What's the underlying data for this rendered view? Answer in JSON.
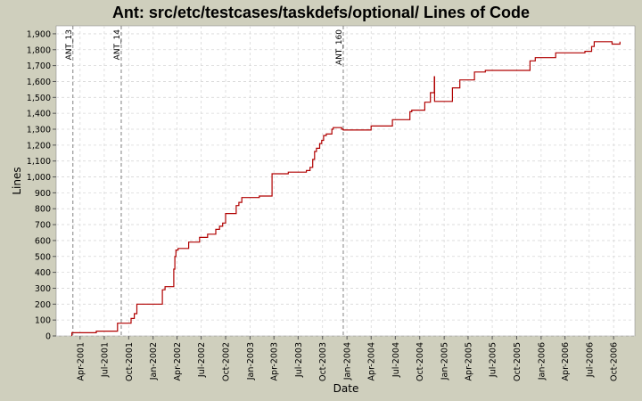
{
  "chart_data": {
    "type": "line",
    "title": "Ant: src/etc/testcases/taskdefs/optional/ Lines of Code",
    "xlabel": "Date",
    "ylabel": "Lines",
    "ylim": [
      0,
      1950
    ],
    "xlim": [
      "2001-01-01",
      "2006-12-20"
    ],
    "grid": true,
    "yticks": [
      0,
      100,
      200,
      300,
      400,
      500,
      600,
      700,
      800,
      900,
      1000,
      1100,
      1200,
      1300,
      1400,
      1500,
      1600,
      1700,
      1800,
      1900
    ],
    "xticks": [
      {
        "date": "2001-04-01",
        "label": "Apr-2001"
      },
      {
        "date": "2001-07-01",
        "label": "Jul-2001"
      },
      {
        "date": "2001-10-01",
        "label": "Oct-2001"
      },
      {
        "date": "2002-01-01",
        "label": "Jan-2002"
      },
      {
        "date": "2002-04-01",
        "label": "Apr-2002"
      },
      {
        "date": "2002-07-01",
        "label": "Jul-2002"
      },
      {
        "date": "2002-10-01",
        "label": "Oct-2002"
      },
      {
        "date": "2003-01-01",
        "label": "Jan-2003"
      },
      {
        "date": "2003-04-01",
        "label": "Apr-2003"
      },
      {
        "date": "2003-07-01",
        "label": "Jul-2003"
      },
      {
        "date": "2003-10-01",
        "label": "Oct-2003"
      },
      {
        "date": "2004-01-01",
        "label": "Jan-2004"
      },
      {
        "date": "2004-04-01",
        "label": "Apr-2004"
      },
      {
        "date": "2004-07-01",
        "label": "Jul-2004"
      },
      {
        "date": "2004-10-01",
        "label": "Oct-2004"
      },
      {
        "date": "2005-01-01",
        "label": "Jan-2005"
      },
      {
        "date": "2005-04-01",
        "label": "Apr-2005"
      },
      {
        "date": "2005-07-01",
        "label": "Jul-2005"
      },
      {
        "date": "2005-10-01",
        "label": "Oct-2005"
      },
      {
        "date": "2006-01-01",
        "label": "Jan-2006"
      },
      {
        "date": "2006-04-01",
        "label": "Apr-2006"
      },
      {
        "date": "2006-07-01",
        "label": "Jul-2006"
      },
      {
        "date": "2006-10-01",
        "label": "Oct-2006"
      }
    ],
    "markers": [
      {
        "date": "2001-03-05",
        "label": "ANT_13"
      },
      {
        "date": "2001-09-03",
        "label": "ANT_14"
      },
      {
        "date": "2003-12-18",
        "label": "ANT_160"
      }
    ],
    "series": [
      {
        "color": "#b00000",
        "points": [
          [
            "2001-03-01",
            0
          ],
          [
            "2001-03-01",
            20
          ],
          [
            "2001-06-01",
            20
          ],
          [
            "2001-06-01",
            30
          ],
          [
            "2001-08-20",
            30
          ],
          [
            "2001-08-20",
            80
          ],
          [
            "2001-10-10",
            80
          ],
          [
            "2001-10-10",
            110
          ],
          [
            "2001-10-22",
            110
          ],
          [
            "2001-10-22",
            140
          ],
          [
            "2001-11-01",
            140
          ],
          [
            "2001-11-01",
            200
          ],
          [
            "2002-02-05",
            200
          ],
          [
            "2002-02-05",
            290
          ],
          [
            "2002-02-15",
            290
          ],
          [
            "2002-02-15",
            310
          ],
          [
            "2002-03-20",
            310
          ],
          [
            "2002-03-20",
            420
          ],
          [
            "2002-03-24",
            420
          ],
          [
            "2002-03-24",
            500
          ],
          [
            "2002-03-28",
            500
          ],
          [
            "2002-03-28",
            540
          ],
          [
            "2002-04-05",
            540
          ],
          [
            "2002-04-05",
            550
          ],
          [
            "2002-05-15",
            550
          ],
          [
            "2002-05-15",
            590
          ],
          [
            "2002-06-25",
            590
          ],
          [
            "2002-06-25",
            620
          ],
          [
            "2002-07-25",
            620
          ],
          [
            "2002-07-25",
            640
          ],
          [
            "2002-08-25",
            640
          ],
          [
            "2002-08-25",
            670
          ],
          [
            "2002-09-08",
            670
          ],
          [
            "2002-09-08",
            690
          ],
          [
            "2002-09-20",
            690
          ],
          [
            "2002-09-20",
            710
          ],
          [
            "2002-10-01",
            710
          ],
          [
            "2002-10-01",
            770
          ],
          [
            "2002-11-10",
            770
          ],
          [
            "2002-11-10",
            820
          ],
          [
            "2002-11-20",
            820
          ],
          [
            "2002-11-20",
            840
          ],
          [
            "2002-12-01",
            840
          ],
          [
            "2002-12-01",
            870
          ],
          [
            "2003-02-05",
            870
          ],
          [
            "2003-02-05",
            880
          ],
          [
            "2003-03-25",
            880
          ],
          [
            "2003-03-25",
            1020
          ],
          [
            "2003-05-25",
            1020
          ],
          [
            "2003-05-25",
            1030
          ],
          [
            "2003-08-01",
            1030
          ],
          [
            "2003-08-01",
            1040
          ],
          [
            "2003-08-15",
            1040
          ],
          [
            "2003-08-15",
            1060
          ],
          [
            "2003-08-25",
            1060
          ],
          [
            "2003-08-25",
            1110
          ],
          [
            "2003-09-01",
            1110
          ],
          [
            "2003-09-01",
            1160
          ],
          [
            "2003-09-08",
            1160
          ],
          [
            "2003-09-08",
            1180
          ],
          [
            "2003-09-20",
            1180
          ],
          [
            "2003-09-20",
            1210
          ],
          [
            "2003-09-28",
            1210
          ],
          [
            "2003-09-28",
            1230
          ],
          [
            "2003-10-05",
            1230
          ],
          [
            "2003-10-05",
            1260
          ],
          [
            "2003-10-15",
            1260
          ],
          [
            "2003-10-15",
            1270
          ],
          [
            "2003-11-05",
            1270
          ],
          [
            "2003-11-05",
            1300
          ],
          [
            "2003-11-10",
            1300
          ],
          [
            "2003-11-10",
            1310
          ],
          [
            "2003-12-12",
            1310
          ],
          [
            "2003-12-12",
            1300
          ],
          [
            "2003-12-18",
            1300
          ],
          [
            "2003-12-18",
            1295
          ],
          [
            "2004-04-01",
            1295
          ],
          [
            "2004-04-01",
            1320
          ],
          [
            "2004-06-20",
            1320
          ],
          [
            "2004-06-20",
            1360
          ],
          [
            "2004-08-25",
            1360
          ],
          [
            "2004-08-25",
            1410
          ],
          [
            "2004-09-01",
            1410
          ],
          [
            "2004-09-01",
            1420
          ],
          [
            "2004-10-20",
            1420
          ],
          [
            "2004-10-20",
            1470
          ],
          [
            "2004-11-10",
            1470
          ],
          [
            "2004-11-10",
            1530
          ],
          [
            "2004-11-25",
            1530
          ],
          [
            "2004-11-25",
            1630
          ],
          [
            "2004-11-26",
            1630
          ],
          [
            "2004-11-26",
            1475
          ],
          [
            "2005-02-01",
            1475
          ],
          [
            "2005-02-01",
            1560
          ],
          [
            "2005-03-01",
            1560
          ],
          [
            "2005-03-01",
            1610
          ],
          [
            "2005-04-25",
            1610
          ],
          [
            "2005-04-25",
            1660
          ],
          [
            "2005-06-05",
            1660
          ],
          [
            "2005-06-05",
            1670
          ],
          [
            "2005-11-20",
            1670
          ],
          [
            "2005-11-20",
            1730
          ],
          [
            "2005-12-10",
            1730
          ],
          [
            "2005-12-10",
            1750
          ],
          [
            "2006-02-25",
            1750
          ],
          [
            "2006-02-25",
            1780
          ],
          [
            "2006-06-15",
            1780
          ],
          [
            "2006-06-15",
            1790
          ],
          [
            "2006-07-10",
            1790
          ],
          [
            "2006-07-10",
            1820
          ],
          [
            "2006-07-20",
            1820
          ],
          [
            "2006-07-20",
            1850
          ],
          [
            "2006-09-25",
            1850
          ],
          [
            "2006-09-25",
            1835
          ],
          [
            "2006-10-25",
            1835
          ],
          [
            "2006-10-25",
            1850
          ]
        ]
      }
    ]
  },
  "colors": {
    "background": "#cfcfbd",
    "plot_bg": "#ffffff",
    "grid": "#d8d8d8",
    "line": "#b00000",
    "marker": "#808080"
  }
}
